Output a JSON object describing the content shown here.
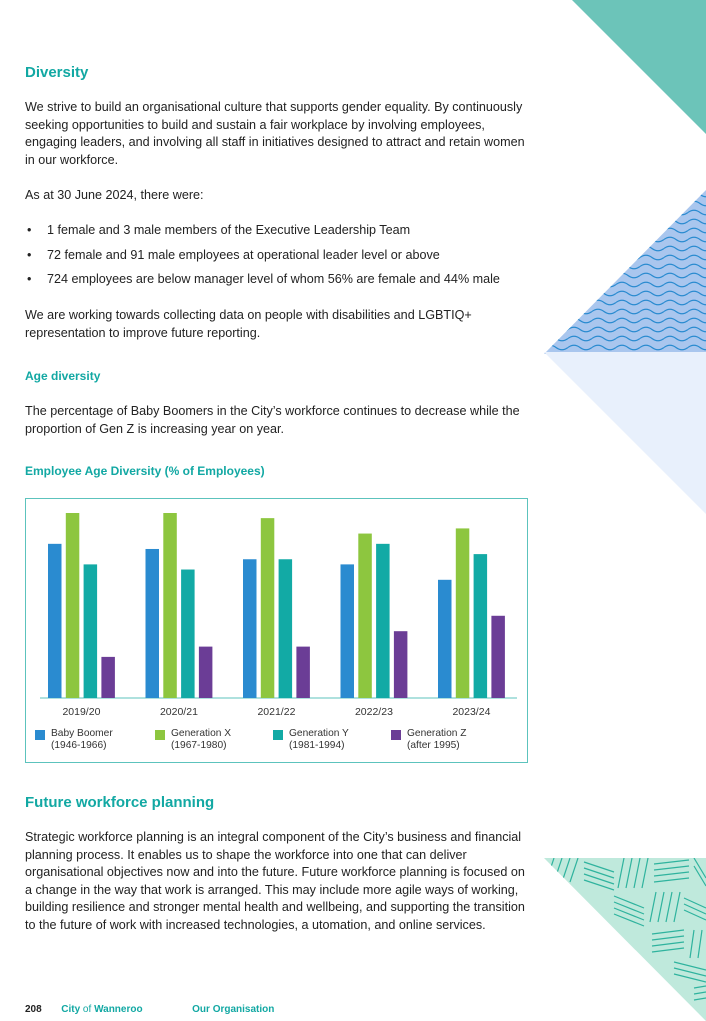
{
  "diversity": {
    "heading": "Diversity",
    "para1": "We strive to build an organisational culture that supports gender equality. By continuously seeking opportunities to build and sustain a fair workplace by involving employees, engaging leaders, and involving all staff in initiatives designed to attract and retain women in our workforce.",
    "para2": "As at 30 June 2024, there were:",
    "bullets": [
      "1 female and 3 male members of the Executive Leadership Team",
      "72 female and 91 male employees at operational leader level or above",
      "724 employees are below manager level of whom 56% are female and 44% male"
    ],
    "para3": "We are working towards collecting data on people with disabilities and LGBTIQ+ representation to improve future reporting."
  },
  "age_diversity": {
    "heading": "Age diversity",
    "para": "The percentage of Baby Boomers in the City’s workforce continues to decrease while the proportion of Gen Z is increasing year on year.",
    "chart_heading": "Employee Age Diversity (% of Employees)"
  },
  "chart_data": {
    "type": "bar",
    "title": "Employee Age Diversity (% of Employees)",
    "categories": [
      "2019/20",
      "2020/21",
      "2021/22",
      "2022/23",
      "2023/24"
    ],
    "ylim": [
      0,
      36
    ],
    "grid": false,
    "legend_position": "bottom",
    "series": [
      {
        "name": "Baby Boomer (1946-1966)",
        "label_line1": "Baby Boomer",
        "label_line2": "(1946-1966)",
        "color": "#2a8bd0",
        "values": [
          30,
          29,
          27,
          26,
          23
        ]
      },
      {
        "name": "Generation X (1967-1980)",
        "label_line1": "Generation X",
        "label_line2": "(1967-1980)",
        "color": "#8dc63f",
        "values": [
          36,
          36,
          35,
          32,
          33
        ]
      },
      {
        "name": "Generation Y (1981-1994)",
        "label_line1": "Generation Y",
        "label_line2": "(1981-1994)",
        "color": "#12aaa5",
        "values": [
          26,
          25,
          27,
          30,
          28
        ]
      },
      {
        "name": "Generation Z (after 1995)",
        "label_line1": "Generation Z",
        "label_line2": "(after 1995)",
        "color": "#6b3d96",
        "values": [
          8,
          10,
          10,
          13,
          16
        ]
      }
    ]
  },
  "workforce": {
    "heading": "Future workforce planning",
    "para": "Strategic workforce planning is an integral component of the City’s business and financial planning process. It enables us to shape the workforce into one that can deliver organisational objectives now and into the future. Future workforce planning is focused on a change in the way that work is arranged. This may include more agile ways of working, building resilience and stronger mental health and wellbeing, and supporting the transition to the future of work with increased technologies, a utomation, and online services."
  },
  "footer": {
    "page_number": "208",
    "org_city": "City",
    "org_of": " of ",
    "org_name": "Wanneroo",
    "section": "Our Organisation"
  },
  "colors": {
    "accent": "#12a8a3",
    "teal_triangle": "#6cc4b9",
    "wave_bg": "#a9c6ee",
    "wave_line": "#2a8bd0",
    "pale_blue": "#e8f0fc",
    "line_pattern_bg": "#bfe9dc",
    "line_pattern": "#2fb39e"
  }
}
